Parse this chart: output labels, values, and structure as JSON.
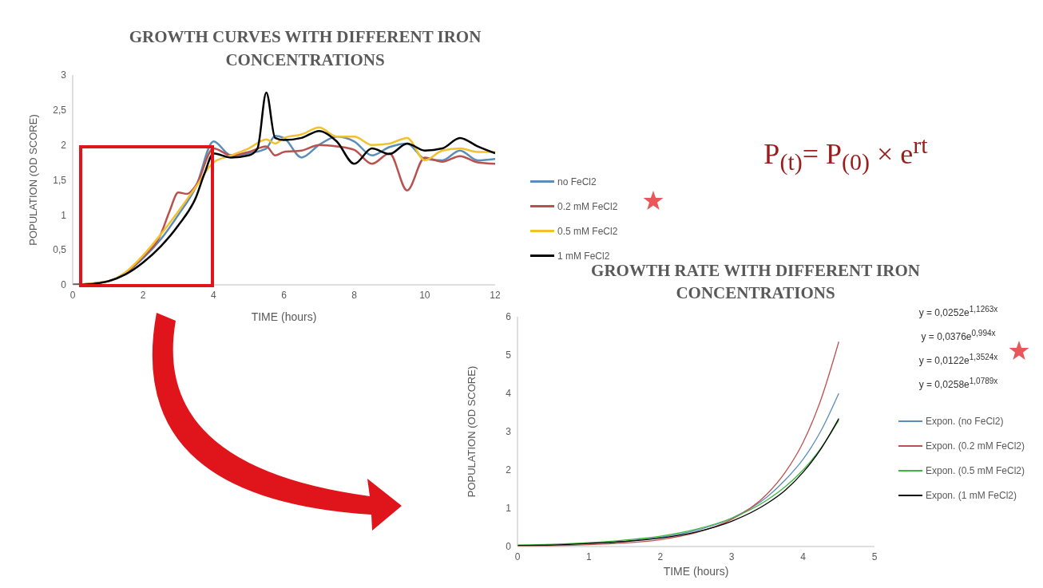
{
  "chart_data": [
    {
      "type": "line",
      "title": "GROWTH CURVES WITH DIFFERENT IRON CONCENTRATIONS",
      "xlabel": "TIME (hours)",
      "ylabel": "POPULATION (OD SCORE)",
      "xlim": [
        0,
        12
      ],
      "xticks": [
        0,
        2,
        4,
        6,
        8,
        10,
        12
      ],
      "ylim": [
        0,
        3
      ],
      "yticks": [
        0,
        {
          "value": 0.5,
          "label": "0,5"
        },
        1,
        {
          "value": 1.5,
          "label": "1,5"
        },
        2,
        {
          "value": 2.5,
          "label": "2,5"
        },
        3
      ],
      "legend": "right",
      "line_style": "solid",
      "annotations": [
        "P$_{(t)}$= P$_{(0)}$ × e$^{rt}$"
      ],
      "series": [
        {
          "name": "no FeCl2",
          "color": "#5b8db8",
          "x": [
            0,
            1,
            1.5,
            2,
            2.5,
            3,
            3.5,
            4,
            4.5,
            5,
            5.5,
            5.75,
            6,
            6.5,
            7,
            7.5,
            8,
            8.5,
            9,
            9.5,
            10,
            10.5,
            11,
            11.5,
            12
          ],
          "values": [
            0,
            0.05,
            0.17,
            0.38,
            0.65,
            1.0,
            1.4,
            2.05,
            1.85,
            1.88,
            1.95,
            2.13,
            2.1,
            1.82,
            2.0,
            2.12,
            2.05,
            1.85,
            1.97,
            2.02,
            1.8,
            1.78,
            1.92,
            1.78,
            1.8
          ]
        },
        {
          "name": "0.2 mM FeCl2",
          "color": "#b9514f",
          "x": [
            0,
            1,
            1.5,
            2,
            2.5,
            2.75,
            3,
            3.25,
            3.5,
            4,
            4.5,
            5,
            5.5,
            5.75,
            6,
            6.5,
            7,
            7.5,
            8,
            8.5,
            9,
            9.5,
            10,
            10.5,
            11,
            11.5,
            12
          ],
          "values": [
            0,
            0.05,
            0.17,
            0.4,
            0.72,
            1.05,
            1.32,
            1.3,
            1.42,
            1.95,
            1.85,
            1.9,
            1.98,
            1.85,
            1.9,
            1.92,
            2.0,
            1.98,
            1.93,
            1.73,
            1.88,
            1.35,
            1.82,
            1.76,
            1.84,
            1.75,
            1.73
          ]
        },
        {
          "name": "0.5 mM FeCl2",
          "color": "#f2c12e",
          "x": [
            0,
            1,
            1.5,
            2,
            2.5,
            3,
            3.5,
            4,
            4.5,
            5,
            5.5,
            5.75,
            6,
            6.5,
            7,
            7.5,
            8,
            8.5,
            9,
            9.5,
            10,
            10.5,
            11,
            11.5,
            12
          ],
          "values": [
            0,
            0.05,
            0.18,
            0.42,
            0.72,
            1.05,
            1.4,
            1.75,
            1.85,
            1.95,
            2.08,
            2.02,
            2.1,
            2.15,
            2.25,
            2.12,
            2.12,
            2.0,
            2.02,
            2.1,
            1.78,
            1.92,
            1.95,
            1.9,
            1.9
          ]
        },
        {
          "name": "1 mM FeCl2",
          "color": "#000000",
          "x": [
            0,
            0.5,
            1,
            1.5,
            2,
            2.5,
            3,
            3.5,
            3.75,
            4,
            4.5,
            5,
            5.25,
            5.5,
            5.75,
            6,
            6.5,
            7,
            7.5,
            8,
            8.5,
            9,
            9.5,
            10,
            10.5,
            11,
            11.5,
            12
          ],
          "values": [
            0,
            0.01,
            0.05,
            0.15,
            0.32,
            0.55,
            0.85,
            1.25,
            1.6,
            1.88,
            1.82,
            1.85,
            1.95,
            2.75,
            2.1,
            2.07,
            2.1,
            2.2,
            2.05,
            1.73,
            1.95,
            1.87,
            2.02,
            1.92,
            1.95,
            2.1,
            1.98,
            1.88
          ]
        }
      ]
    },
    {
      "type": "line",
      "title": "GROWTH RATE WITH DIFFERENT IRON CONCENTRATIONS",
      "xlabel": "TIME (hours)",
      "ylabel": "POPULATION (OD SCORE)",
      "xlim": [
        0,
        5
      ],
      "xticks": [
        0,
        1,
        2,
        3,
        4,
        5
      ],
      "ylim": [
        0,
        6
      ],
      "yticks": [
        0,
        1,
        2,
        3,
        4,
        5,
        6
      ],
      "legend": "right",
      "line_style": "solid",
      "annotations": [
        "y = 0,0252e$^{1,1263x}$",
        "y = 0,0376e$^{0,994x}$",
        "y = 0,0122e$^{1,3524x}$",
        "y = 0,0258e$^{1,0789x}$"
      ],
      "series": [
        {
          "name": "Expon. (no FeCl2)",
          "color": "#5b8db8",
          "x": [
            1,
            1.5,
            2,
            2.5,
            3,
            3.5,
            3.75,
            4,
            4.25,
            4.5
          ],
          "values": [
            0.08,
            0.14,
            0.24,
            0.42,
            0.74,
            1.3,
            1.74,
            2.28,
            3.02,
            4.0
          ]
        },
        {
          "name": "Expon. (0.2 mM FeCl2)",
          "color": "#c0504d",
          "x": [
            0,
            0.5,
            1,
            1.5,
            2,
            2.5,
            3,
            3.5,
            3.75,
            4,
            4.25,
            4.5
          ],
          "values": [
            0.01,
            0.02,
            0.05,
            0.09,
            0.18,
            0.36,
            0.71,
            1.38,
            1.94,
            2.72,
            3.84,
            5.35
          ]
        },
        {
          "name": "Expon. (0.5 mM FeCl2)",
          "color": "#3cb83c",
          "x": [
            0,
            0.5,
            1,
            1.5,
            2,
            2.5,
            3,
            3.5,
            3.75,
            4,
            4.25,
            4.5
          ],
          "values": [
            0.04,
            0.06,
            0.1,
            0.17,
            0.27,
            0.45,
            0.74,
            1.22,
            1.56,
            2.0,
            2.57,
            3.3
          ]
        },
        {
          "name": "Expon. (1 mM FeCl2)",
          "color": "#000000",
          "x": [
            0,
            0.5,
            1,
            1.5,
            2,
            2.5,
            3,
            3.5,
            3.75,
            4,
            4.25,
            4.5
          ],
          "values": [
            0.03,
            0.04,
            0.08,
            0.13,
            0.22,
            0.38,
            0.66,
            1.13,
            1.47,
            1.94,
            2.55,
            3.34
          ]
        }
      ]
    }
  ]
}
